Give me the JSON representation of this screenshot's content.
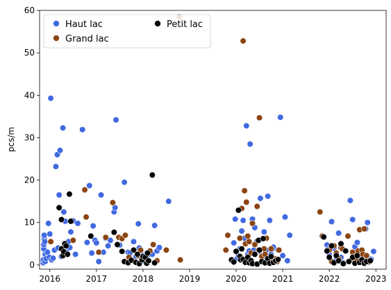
{
  "chart_data": {
    "type": "scatter",
    "title": "",
    "xlabel": "",
    "ylabel": "pcs/m",
    "xlim": [
      2015.78,
      2023.22
    ],
    "ylim": [
      -1,
      60
    ],
    "x_ticks": [
      {
        "value": 2016,
        "label": "2016"
      },
      {
        "value": 2017,
        "label": "2017"
      },
      {
        "value": 2018,
        "label": "2018"
      },
      {
        "value": 2019,
        "label": "2019"
      },
      {
        "value": 2020,
        "label": "2020"
      },
      {
        "value": 2021,
        "label": "2021"
      },
      {
        "value": 2022,
        "label": "2022"
      },
      {
        "value": 2023,
        "label": "2023"
      }
    ],
    "y_ticks": [
      {
        "value": 0,
        "label": "0"
      },
      {
        "value": 10,
        "label": "10"
      },
      {
        "value": 20,
        "label": "20"
      },
      {
        "value": 30,
        "label": "30"
      },
      {
        "value": 40,
        "label": "40"
      },
      {
        "value": 50,
        "label": "50"
      },
      {
        "value": 60,
        "label": "60"
      }
    ],
    "grid": false,
    "legend_position": "top-left",
    "series": [
      {
        "name": "Haut lac",
        "color": "#4169e1",
        "points": [
          [
            2015.86,
            0.5
          ],
          [
            2015.86,
            1.2
          ],
          [
            2015.87,
            3.8
          ],
          [
            2015.87,
            4.8
          ],
          [
            2015.88,
            6.2
          ],
          [
            2015.88,
            7.0
          ],
          [
            2015.89,
            5.5
          ],
          [
            2015.9,
            2.5
          ],
          [
            2015.9,
            0.8
          ],
          [
            2015.92,
            1.5
          ],
          [
            2015.95,
            3.0
          ],
          [
            2015.97,
            9.8
          ],
          [
            2015.99,
            1.8
          ],
          [
            2016.0,
            7.3
          ],
          [
            2016.02,
            39.3
          ],
          [
            2016.04,
            1.2
          ],
          [
            2016.07,
            1.6
          ],
          [
            2016.1,
            3.5
          ],
          [
            2016.13,
            23.2
          ],
          [
            2016.16,
            26.0
          ],
          [
            2016.18,
            4.0
          ],
          [
            2016.2,
            16.5
          ],
          [
            2016.22,
            27.0
          ],
          [
            2016.25,
            2.0
          ],
          [
            2016.28,
            32.3
          ],
          [
            2016.3,
            12.5
          ],
          [
            2016.33,
            10.3
          ],
          [
            2016.36,
            3.0
          ],
          [
            2016.4,
            5.5
          ],
          [
            2016.43,
            4.1
          ],
          [
            2016.45,
            7.8
          ],
          [
            2016.5,
            10.4
          ],
          [
            2016.55,
            2.5
          ],
          [
            2016.6,
            9.8
          ],
          [
            2016.7,
            31.9
          ],
          [
            2016.8,
            5.3
          ],
          [
            2016.85,
            18.7
          ],
          [
            2016.9,
            2.8
          ],
          [
            2016.93,
            9.2
          ],
          [
            2016.97,
            5.8
          ],
          [
            2017.0,
            5.2
          ],
          [
            2017.05,
            0.8
          ],
          [
            2017.1,
            16.5
          ],
          [
            2017.15,
            3.0
          ],
          [
            2017.2,
            6.3
          ],
          [
            2017.25,
            4.5
          ],
          [
            2017.3,
            5.8
          ],
          [
            2017.38,
            12.5
          ],
          [
            2017.4,
            13.5
          ],
          [
            2017.42,
            34.2
          ],
          [
            2017.5,
            4.7
          ],
          [
            2017.6,
            19.5
          ],
          [
            2017.68,
            3.0
          ],
          [
            2017.72,
            2.8
          ],
          [
            2017.8,
            5.5
          ],
          [
            2017.85,
            2.0
          ],
          [
            2017.9,
            9.7
          ],
          [
            2017.92,
            4.0
          ],
          [
            2017.95,
            3.2
          ],
          [
            2018.0,
            1.8
          ],
          [
            2018.05,
            0.7
          ],
          [
            2018.08,
            2.8
          ],
          [
            2018.15,
            2.5
          ],
          [
            2018.2,
            2.5
          ],
          [
            2018.25,
            9.3
          ],
          [
            2018.3,
            3.3
          ],
          [
            2018.35,
            4.1
          ],
          [
            2018.55,
            15.0
          ],
          [
            2019.95,
            5.2
          ],
          [
            2019.98,
            10.8
          ],
          [
            2020.02,
            1.5
          ],
          [
            2020.05,
            2.2
          ],
          [
            2020.08,
            3.8
          ],
          [
            2020.12,
            8.0
          ],
          [
            2020.15,
            10.5
          ],
          [
            2020.18,
            6.3
          ],
          [
            2020.2,
            1.2
          ],
          [
            2020.22,
            32.8
          ],
          [
            2020.25,
            2.5
          ],
          [
            2020.28,
            3.3
          ],
          [
            2020.3,
            28.5
          ],
          [
            2020.35,
            10.8
          ],
          [
            2020.38,
            3.5
          ],
          [
            2020.4,
            8.8
          ],
          [
            2020.45,
            5.6
          ],
          [
            2020.5,
            3.2
          ],
          [
            2020.52,
            15.7
          ],
          [
            2020.55,
            2.0
          ],
          [
            2020.58,
            1.8
          ],
          [
            2020.6,
            7.8
          ],
          [
            2020.65,
            3.5
          ],
          [
            2020.68,
            16.2
          ],
          [
            2020.7,
            1.2
          ],
          [
            2020.72,
            10.5
          ],
          [
            2020.75,
            2.5
          ],
          [
            2020.78,
            3.8
          ],
          [
            2020.8,
            4.2
          ],
          [
            2020.85,
            0.8
          ],
          [
            2020.9,
            3.5
          ],
          [
            2020.95,
            34.8
          ],
          [
            2021.0,
            2.2
          ],
          [
            2021.05,
            11.3
          ],
          [
            2021.1,
            1.0
          ],
          [
            2021.15,
            7.0
          ],
          [
            2021.95,
            4.7
          ],
          [
            2021.98,
            3.8
          ],
          [
            2022.0,
            2.5
          ],
          [
            2022.05,
            10.2
          ],
          [
            2022.1,
            4.0
          ],
          [
            2022.15,
            1.2
          ],
          [
            2022.2,
            7.5
          ],
          [
            2022.25,
            1.8
          ],
          [
            2022.3,
            0.5
          ],
          [
            2022.35,
            3.3
          ],
          [
            2022.45,
            15.2
          ],
          [
            2022.5,
            10.7
          ],
          [
            2022.55,
            4.3
          ],
          [
            2022.6,
            5.3
          ],
          [
            2022.65,
            1.0
          ],
          [
            2022.7,
            2.2
          ],
          [
            2022.78,
            8.5
          ],
          [
            2022.82,
            10.0
          ],
          [
            2022.86,
            1.5
          ],
          [
            2022.9,
            1.3
          ],
          [
            2022.95,
            3.2
          ]
        ]
      },
      {
        "name": "Grand lac",
        "color": "#8b4513",
        "points": [
          [
            2016.02,
            5.5
          ],
          [
            2016.5,
            5.8
          ],
          [
            2016.75,
            17.7
          ],
          [
            2016.78,
            11.3
          ],
          [
            2017.05,
            3.0
          ],
          [
            2017.2,
            6.5
          ],
          [
            2017.35,
            14.7
          ],
          [
            2017.48,
            6.5
          ],
          [
            2017.55,
            6.2
          ],
          [
            2017.62,
            7.0
          ],
          [
            2017.7,
            1.8
          ],
          [
            2017.82,
            0.8
          ],
          [
            2017.9,
            2.2
          ],
          [
            2017.95,
            3.5
          ],
          [
            2018.15,
            3.3
          ],
          [
            2018.22,
            4.8
          ],
          [
            2018.3,
            1.0
          ],
          [
            2018.5,
            3.5
          ],
          [
            2018.78,
            58.5
          ],
          [
            2018.8,
            1.2
          ],
          [
            2019.78,
            3.5
          ],
          [
            2019.82,
            7.0
          ],
          [
            2020.08,
            6.3
          ],
          [
            2020.12,
            13.3
          ],
          [
            2020.15,
            52.8
          ],
          [
            2020.18,
            17.5
          ],
          [
            2020.2,
            5.0
          ],
          [
            2020.22,
            14.8
          ],
          [
            2020.25,
            6.8
          ],
          [
            2020.28,
            5.5
          ],
          [
            2020.32,
            2.8
          ],
          [
            2020.35,
            9.8
          ],
          [
            2020.4,
            4.8
          ],
          [
            2020.45,
            13.8
          ],
          [
            2020.48,
            3.5
          ],
          [
            2020.5,
            34.7
          ],
          [
            2020.55,
            2.0
          ],
          [
            2020.6,
            3.8
          ],
          [
            2020.62,
            2.5
          ],
          [
            2020.65,
            6.3
          ],
          [
            2020.7,
            1.5
          ],
          [
            2020.75,
            3.8
          ],
          [
            2020.78,
            1.2
          ],
          [
            2020.82,
            1.5
          ],
          [
            2020.88,
            0.8
          ],
          [
            2020.92,
            3.5
          ],
          [
            2021.8,
            12.5
          ],
          [
            2021.85,
            6.8
          ],
          [
            2022.0,
            3.5
          ],
          [
            2022.05,
            0.8
          ],
          [
            2022.1,
            4.5
          ],
          [
            2022.15,
            2.8
          ],
          [
            2022.2,
            1.5
          ],
          [
            2022.25,
            4.0
          ],
          [
            2022.28,
            3.8
          ],
          [
            2022.4,
            6.8
          ],
          [
            2022.45,
            1.0
          ],
          [
            2022.5,
            3.0
          ],
          [
            2022.55,
            2.0
          ],
          [
            2022.58,
            1.5
          ],
          [
            2022.62,
            3.3
          ],
          [
            2022.65,
            8.3
          ],
          [
            2022.7,
            3.5
          ],
          [
            2022.72,
            2.5
          ],
          [
            2022.75,
            8.5
          ],
          [
            2022.8,
            2.2
          ],
          [
            2022.85,
            0.7
          ]
        ]
      },
      {
        "name": "Petit lac",
        "color": "#000000",
        "points": [
          [
            2016.2,
            13.5
          ],
          [
            2016.25,
            10.7
          ],
          [
            2016.25,
            3.8
          ],
          [
            2016.28,
            2.2
          ],
          [
            2016.3,
            3.1
          ],
          [
            2016.32,
            5.0
          ],
          [
            2016.35,
            4.5
          ],
          [
            2016.38,
            2.5
          ],
          [
            2016.42,
            16.7
          ],
          [
            2016.45,
            10.3
          ],
          [
            2016.88,
            6.8
          ],
          [
            2017.38,
            7.7
          ],
          [
            2017.45,
            4.8
          ],
          [
            2017.55,
            3.2
          ],
          [
            2017.6,
            0.8
          ],
          [
            2017.68,
            0.5
          ],
          [
            2017.75,
            1.1
          ],
          [
            2017.8,
            3.5
          ],
          [
            2017.85,
            0.6
          ],
          [
            2017.88,
            2.5
          ],
          [
            2017.92,
            0.3
          ],
          [
            2017.98,
            1.2
          ],
          [
            2018.0,
            2.0
          ],
          [
            2018.05,
            1.8
          ],
          [
            2018.08,
            0.4
          ],
          [
            2018.1,
            2.8
          ],
          [
            2018.12,
            1.0
          ],
          [
            2018.2,
            21.2
          ],
          [
            2018.25,
            0.5
          ],
          [
            2019.9,
            1.2
          ],
          [
            2019.95,
            0.7
          ],
          [
            2020.0,
            3.2
          ],
          [
            2020.05,
            12.9
          ],
          [
            2020.08,
            2.0
          ],
          [
            2020.1,
            1.2
          ],
          [
            2020.12,
            3.8
          ],
          [
            2020.15,
            1.3
          ],
          [
            2020.2,
            0.6
          ],
          [
            2020.25,
            1.8
          ],
          [
            2020.28,
            0.5
          ],
          [
            2020.32,
            1.0
          ],
          [
            2020.35,
            0.3
          ],
          [
            2020.4,
            2.5
          ],
          [
            2020.45,
            0.2
          ],
          [
            2020.48,
            5.8
          ],
          [
            2020.5,
            3.5
          ],
          [
            2020.55,
            0.8
          ],
          [
            2020.58,
            6.2
          ],
          [
            2020.62,
            0.5
          ],
          [
            2020.68,
            1.5
          ],
          [
            2020.72,
            0.4
          ],
          [
            2020.75,
            2.0
          ],
          [
            2020.8,
            0.6
          ],
          [
            2020.85,
            1.0
          ],
          [
            2020.9,
            1.3
          ],
          [
            2021.88,
            6.6
          ],
          [
            2021.95,
            3.3
          ],
          [
            2022.0,
            1.8
          ],
          [
            2022.05,
            4.5
          ],
          [
            2022.1,
            0.5
          ],
          [
            2022.15,
            2.2
          ],
          [
            2022.2,
            1.0
          ],
          [
            2022.25,
            5.0
          ],
          [
            2022.3,
            0.3
          ],
          [
            2022.35,
            3.3
          ],
          [
            2022.42,
            0.8
          ],
          [
            2022.5,
            1.8
          ],
          [
            2022.55,
            0.4
          ],
          [
            2022.6,
            2.2
          ],
          [
            2022.65,
            0.6
          ],
          [
            2022.7,
            1.2
          ],
          [
            2022.75,
            0.4
          ],
          [
            2022.8,
            0.8
          ],
          [
            2022.88,
            1.0
          ]
        ]
      }
    ]
  }
}
